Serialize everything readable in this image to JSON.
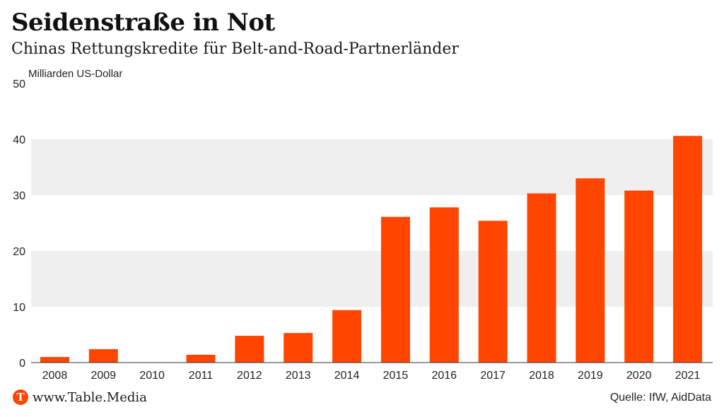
{
  "chart_data": {
    "type": "bar",
    "title": "Seidenstraße in Not",
    "subtitle": "Chinas Rettungskredite für Belt-and-Road-Partnerländer",
    "ylabel": "Milliarden US-Dollar",
    "xlabel": "",
    "categories": [
      "2008",
      "2009",
      "2010",
      "2011",
      "2012",
      "2013",
      "2014",
      "2015",
      "2016",
      "2017",
      "2018",
      "2019",
      "2020",
      "2021"
    ],
    "values": [
      1.0,
      2.4,
      0,
      1.4,
      4.8,
      5.3,
      9.4,
      26.1,
      27.8,
      25.4,
      30.3,
      33.0,
      30.8,
      40.6
    ],
    "ylim": [
      0,
      50
    ],
    "yticks": [
      0,
      10,
      20,
      30,
      40,
      50
    ],
    "grid": "alternating horizontal bands",
    "bar_color": "#ff4500",
    "band_color": "#efefef"
  },
  "footer": {
    "logo_letter": "T",
    "website": "www.Table.Media",
    "source": "Quelle: IfW, AidData"
  }
}
